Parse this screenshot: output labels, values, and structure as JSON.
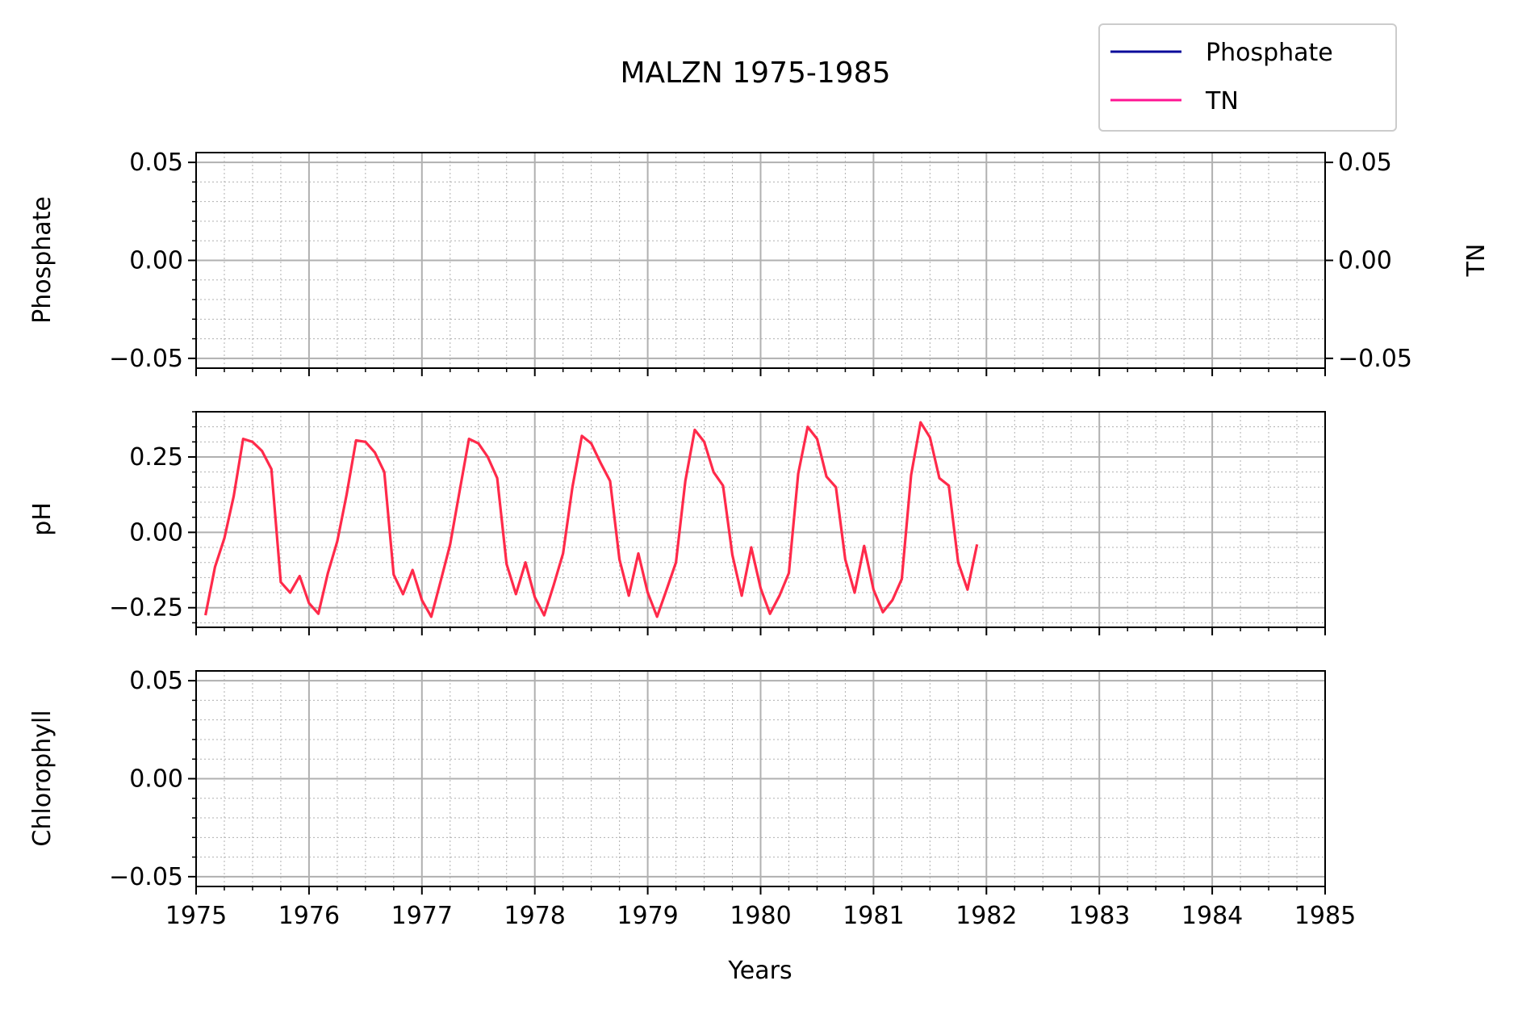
{
  "chart_data": {
    "type": "line",
    "title": "MALZN 1975-1985",
    "xlabel": "Years",
    "xlim": [
      1975,
      1985
    ],
    "x_ticks": [
      "1975",
      "1976",
      "1977",
      "1978",
      "1979",
      "1980",
      "1981",
      "1982",
      "1983",
      "1984",
      "1985"
    ],
    "legend": {
      "placement": "top-right",
      "entries": [
        {
          "name": "Phosphate",
          "color": "#0a0a9a"
        },
        {
          "name": "TN",
          "color": "#ff1493"
        }
      ]
    },
    "panels": [
      {
        "id": "phosphate",
        "ylabel": "Phosphate",
        "ylabel_right": "TN",
        "ylim": [
          -0.055,
          0.055
        ],
        "y_ticks": [
          -0.05,
          0.0,
          0.05
        ],
        "y_tick_labels": [
          "−0.05",
          "0.00",
          "0.05"
        ],
        "y_tick_labels_right": [
          "−0.05",
          "0.00",
          "0.05"
        ],
        "series": []
      },
      {
        "id": "ph",
        "ylabel": "pH",
        "ylim": [
          -0.315,
          0.4
        ],
        "y_ticks": [
          -0.25,
          0.0,
          0.25
        ],
        "y_tick_labels": [
          "−0.25",
          "0.00",
          "0.25"
        ],
        "series": [
          {
            "color": "#ff2a4a",
            "x": [
              1975.083,
              1975.167,
              1975.25,
              1975.333,
              1975.417,
              1975.5,
              1975.583,
              1975.667,
              1975.75,
              1975.833,
              1975.917,
              1976.0,
              1976.083,
              1976.167,
              1976.25,
              1976.333,
              1976.417,
              1976.5,
              1976.583,
              1976.667,
              1976.75,
              1976.833,
              1976.917,
              1977.0,
              1977.083,
              1977.167,
              1977.25,
              1977.333,
              1977.417,
              1977.5,
              1977.583,
              1977.667,
              1977.75,
              1977.833,
              1977.917,
              1978.0,
              1978.083,
              1978.167,
              1978.25,
              1978.333,
              1978.417,
              1978.5,
              1978.583,
              1978.667,
              1978.75,
              1978.833,
              1978.917,
              1979.0,
              1979.083,
              1979.167,
              1979.25,
              1979.333,
              1979.417,
              1979.5,
              1979.583,
              1979.667,
              1979.75,
              1979.833,
              1979.917,
              1980.0,
              1980.083,
              1980.167,
              1980.25,
              1980.333,
              1980.417,
              1980.5,
              1980.583,
              1980.667,
              1980.75,
              1980.833,
              1980.917,
              1981.0,
              1981.083,
              1981.167,
              1981.25,
              1981.333,
              1981.417,
              1981.5,
              1981.583,
              1981.667,
              1981.75,
              1981.833,
              1981.917
            ],
            "y": [
              -0.275,
              -0.115,
              -0.02,
              0.12,
              0.31,
              0.3,
              0.27,
              0.21,
              -0.165,
              -0.2,
              -0.145,
              -0.235,
              -0.27,
              -0.135,
              -0.03,
              0.125,
              0.305,
              0.3,
              0.265,
              0.2,
              -0.14,
              -0.205,
              -0.125,
              -0.225,
              -0.28,
              -0.16,
              -0.04,
              0.135,
              0.31,
              0.295,
              0.25,
              0.18,
              -0.105,
              -0.205,
              -0.1,
              -0.215,
              -0.275,
              -0.175,
              -0.07,
              0.15,
              0.32,
              0.295,
              0.23,
              0.17,
              -0.09,
              -0.21,
              -0.07,
              -0.2,
              -0.28,
              -0.19,
              -0.1,
              0.17,
              0.34,
              0.3,
              0.2,
              0.155,
              -0.075,
              -0.21,
              -0.05,
              -0.185,
              -0.27,
              -0.21,
              -0.135,
              0.195,
              0.35,
              0.31,
              0.185,
              0.15,
              -0.09,
              -0.2,
              -0.045,
              -0.19,
              -0.265,
              -0.225,
              -0.155,
              0.19,
              0.365,
              0.315,
              0.18,
              0.155,
              -0.1,
              -0.19,
              -0.04
            ]
          }
        ]
      },
      {
        "id": "chlorophyll",
        "ylabel": "Chlorophyll",
        "ylim": [
          -0.055,
          0.055
        ],
        "y_ticks": [
          -0.05,
          0.0,
          0.05
        ],
        "y_tick_labels": [
          "−0.05",
          "0.00",
          "0.05"
        ],
        "series": []
      }
    ],
    "grid": {
      "major": true,
      "minor": true
    }
  }
}
